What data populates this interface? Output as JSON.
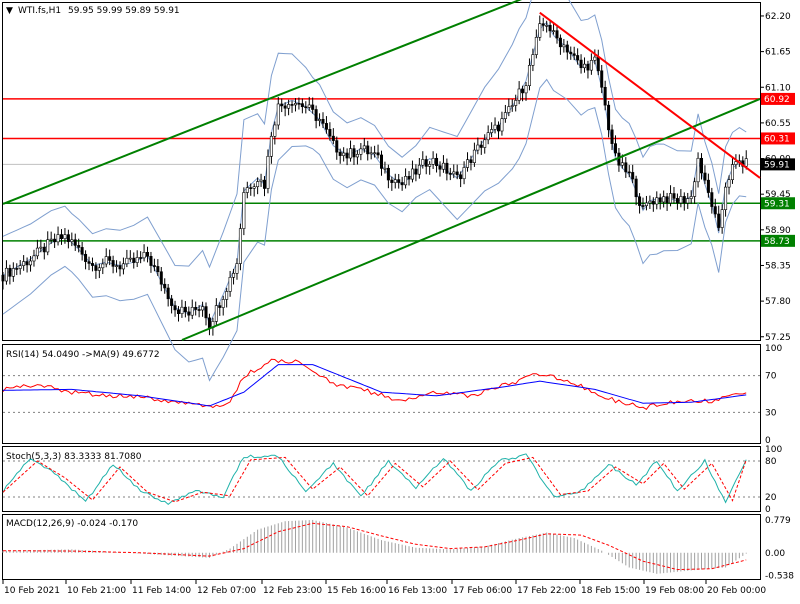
{
  "chart_data": [
    {
      "type": "candlestick",
      "symbol_header": "WTI.fs,H1",
      "ohlc_header": "59.95 59.99 59.89 59.91",
      "current_price": "59.91",
      "ylim": [
        57.2,
        62.4
      ],
      "y_ticks": [
        "62.20",
        "61.65",
        "61.10",
        "60.55",
        "60.00",
        "59.45",
        "58.90",
        "58.35",
        "57.80",
        "57.25"
      ],
      "y_tick_values": [
        62.2,
        61.65,
        61.1,
        60.55,
        60.0,
        59.45,
        58.9,
        58.35,
        57.8,
        57.25
      ],
      "horizontal_levels": [
        {
          "value": 60.92,
          "label": "60.92",
          "color": "#ff0000"
        },
        {
          "value": 60.31,
          "label": "60.31",
          "color": "#ff0000"
        },
        {
          "value": 59.31,
          "label": "59.31",
          "color": "#008000"
        },
        {
          "value": 58.73,
          "label": "58.73",
          "color": "#008000"
        }
      ],
      "price_path": [
        [
          0,
          58.2
        ],
        [
          8,
          58.45
        ],
        [
          14,
          58.7
        ],
        [
          18,
          58.8
        ],
        [
          22,
          58.6
        ],
        [
          26,
          58.35
        ],
        [
          30,
          58.4
        ],
        [
          34,
          58.35
        ],
        [
          38,
          58.4
        ],
        [
          42,
          58.5
        ],
        [
          46,
          58.1
        ],
        [
          50,
          57.7
        ],
        [
          54,
          57.6
        ],
        [
          58,
          57.75
        ],
        [
          60,
          57.45
        ],
        [
          64,
          57.9
        ],
        [
          68,
          58.4
        ],
        [
          70,
          59.5
        ],
        [
          74,
          59.7
        ],
        [
          76,
          59.6
        ],
        [
          78,
          60.4
        ],
        [
          80,
          60.8
        ],
        [
          84,
          60.9
        ],
        [
          88,
          60.8
        ],
        [
          92,
          60.6
        ],
        [
          96,
          60.2
        ],
        [
          100,
          60.05
        ],
        [
          104,
          60.15
        ],
        [
          108,
          60.05
        ],
        [
          112,
          59.75
        ],
        [
          116,
          59.6
        ],
        [
          120,
          59.8
        ],
        [
          124,
          60.0
        ],
        [
          128,
          59.85
        ],
        [
          132,
          59.7
        ],
        [
          136,
          60.0
        ],
        [
          140,
          60.3
        ],
        [
          144,
          60.5
        ],
        [
          148,
          60.8
        ],
        [
          152,
          61.2
        ],
        [
          154,
          61.6
        ],
        [
          156,
          62.0
        ],
        [
          158,
          62.1
        ],
        [
          160,
          61.9
        ],
        [
          164,
          61.7
        ],
        [
          168,
          61.4
        ],
        [
          172,
          61.5
        ],
        [
          174,
          61.1
        ],
        [
          176,
          60.5
        ],
        [
          178,
          60.0
        ],
        [
          180,
          59.85
        ],
        [
          182,
          59.75
        ],
        [
          184,
          59.5
        ],
        [
          186,
          59.2
        ],
        [
          188,
          59.35
        ],
        [
          192,
          59.4
        ],
        [
          196,
          59.35
        ],
        [
          200,
          59.4
        ],
        [
          202,
          60.0
        ],
        [
          204,
          59.6
        ],
        [
          206,
          59.3
        ],
        [
          208,
          58.85
        ],
        [
          210,
          59.6
        ],
        [
          212,
          59.85
        ],
        [
          214,
          59.95
        ],
        [
          216,
          59.91
        ]
      ],
      "bollinger_half_width": [
        [
          0,
          0.5
        ],
        [
          20,
          0.35
        ],
        [
          50,
          0.55
        ],
        [
          70,
          1.0
        ],
        [
          90,
          0.45
        ],
        [
          120,
          0.3
        ],
        [
          150,
          0.9
        ],
        [
          170,
          0.6
        ],
        [
          190,
          0.75
        ],
        [
          216,
          0.4
        ]
      ],
      "lines": [
        {
          "name": "channel-upper",
          "color": "#008000",
          "from": [
            0,
            59.3
          ],
          "to": [
            155,
            62.55
          ]
        },
        {
          "name": "channel-lower",
          "color": "#008000",
          "from": [
            52,
            57.2
          ],
          "to": [
            220,
            60.92
          ]
        },
        {
          "name": "trend-down",
          "color": "#ff0000",
          "from": [
            156,
            62.25
          ],
          "to": [
            220,
            59.7
          ]
        }
      ],
      "x_range": [
        0,
        220
      ]
    },
    {
      "type": "line",
      "header": "RSI(14) 54.0490  ->MA(9) 49.6772",
      "ylim": [
        0,
        100
      ],
      "y_ticks": [
        "100",
        "70",
        "30",
        "0"
      ],
      "y_tick_values": [
        100,
        70,
        30,
        0
      ],
      "levels": [
        70,
        30
      ],
      "series": [
        {
          "color": "#ff0000",
          "values": [
            [
              0,
              55
            ],
            [
              10,
              60
            ],
            [
              20,
              52
            ],
            [
              30,
              48
            ],
            [
              40,
              47
            ],
            [
              50,
              42
            ],
            [
              60,
              36
            ],
            [
              66,
              40
            ],
            [
              70,
              70
            ],
            [
              78,
              86
            ],
            [
              86,
              86
            ],
            [
              96,
              60
            ],
            [
              106,
              53
            ],
            [
              116,
              42
            ],
            [
              126,
              52
            ],
            [
              136,
              48
            ],
            [
              146,
              60
            ],
            [
              156,
              72
            ],
            [
              166,
              62
            ],
            [
              176,
              45
            ],
            [
              186,
              35
            ],
            [
              196,
              42
            ],
            [
              206,
              42
            ],
            [
              216,
              53
            ]
          ]
        },
        {
          "color": "#0000ff",
          "values": [
            [
              0,
              54
            ],
            [
              20,
              55
            ],
            [
              40,
              48
            ],
            [
              60,
              37
            ],
            [
              70,
              52
            ],
            [
              80,
              82
            ],
            [
              90,
              82
            ],
            [
              110,
              52
            ],
            [
              126,
              48
            ],
            [
              146,
              58
            ],
            [
              156,
              64
            ],
            [
              172,
              55
            ],
            [
              186,
              40
            ],
            [
              200,
              41
            ],
            [
              216,
              49
            ]
          ]
        }
      ]
    },
    {
      "type": "line",
      "header": "Stoch(5,3,3) 83.3333 81.7080",
      "ylim": [
        0,
        100
      ],
      "y_ticks": [
        "100",
        "80",
        "20",
        "0"
      ],
      "y_tick_values": [
        100,
        80,
        20,
        0
      ],
      "levels": [
        80,
        20
      ],
      "series": [
        {
          "color": "#20b2aa",
          "values": [
            [
              0,
              30
            ],
            [
              8,
              85
            ],
            [
              16,
              55
            ],
            [
              24,
              12
            ],
            [
              32,
              75
            ],
            [
              40,
              30
            ],
            [
              48,
              10
            ],
            [
              56,
              30
            ],
            [
              64,
              20
            ],
            [
              70,
              88
            ],
            [
              80,
              88
            ],
            [
              88,
              30
            ],
            [
              96,
              75
            ],
            [
              104,
              20
            ],
            [
              112,
              80
            ],
            [
              120,
              35
            ],
            [
              128,
              85
            ],
            [
              136,
              30
            ],
            [
              144,
              80
            ],
            [
              152,
              90
            ],
            [
              160,
              20
            ],
            [
              168,
              30
            ],
            [
              176,
              75
            ],
            [
              184,
              40
            ],
            [
              190,
              80
            ],
            [
              196,
              30
            ],
            [
              204,
              80
            ],
            [
              210,
              10
            ],
            [
              216,
              84
            ]
          ]
        },
        {
          "color": "#ff0000",
          "values": [
            [
              0,
              28
            ],
            [
              10,
              80
            ],
            [
              18,
              52
            ],
            [
              26,
              15
            ],
            [
              34,
              70
            ],
            [
              42,
              28
            ],
            [
              50,
              12
            ],
            [
              58,
              28
            ],
            [
              66,
              22
            ],
            [
              72,
              82
            ],
            [
              82,
              86
            ],
            [
              90,
              33
            ],
            [
              98,
              70
            ],
            [
              106,
              22
            ],
            [
              114,
              76
            ],
            [
              122,
              37
            ],
            [
              130,
              80
            ],
            [
              138,
              32
            ],
            [
              146,
              76
            ],
            [
              154,
              86
            ],
            [
              162,
              24
            ],
            [
              170,
              30
            ],
            [
              178,
              70
            ],
            [
              186,
              42
            ],
            [
              192,
              76
            ],
            [
              198,
              33
            ],
            [
              206,
              76
            ],
            [
              212,
              14
            ],
            [
              216,
              82
            ]
          ]
        }
      ]
    },
    {
      "type": "bar",
      "header": "MACD(12,26,9) -0.024 -0.170",
      "ylim": [
        -0.6,
        0.85
      ],
      "y_ticks": [
        "0.779",
        "0.00",
        "-0.538"
      ],
      "y_tick_values": [
        0.779,
        0.0,
        -0.538
      ],
      "histogram": [
        [
          0,
          0.05
        ],
        [
          20,
          0.08
        ],
        [
          40,
          -0.02
        ],
        [
          60,
          -0.12
        ],
        [
          66,
          0.1
        ],
        [
          74,
          0.55
        ],
        [
          82,
          0.75
        ],
        [
          90,
          0.78
        ],
        [
          100,
          0.6
        ],
        [
          110,
          0.3
        ],
        [
          120,
          0.12
        ],
        [
          130,
          0.08
        ],
        [
          140,
          0.15
        ],
        [
          150,
          0.35
        ],
        [
          158,
          0.48
        ],
        [
          166,
          0.35
        ],
        [
          174,
          0.05
        ],
        [
          182,
          -0.35
        ],
        [
          190,
          -0.5
        ],
        [
          200,
          -0.42
        ],
        [
          210,
          -0.35
        ],
        [
          216,
          -0.02
        ]
      ],
      "signal": [
        [
          0,
          0.05
        ],
        [
          20,
          0.04
        ],
        [
          40,
          0.0
        ],
        [
          60,
          -0.08
        ],
        [
          70,
          0.1
        ],
        [
          80,
          0.5
        ],
        [
          90,
          0.7
        ],
        [
          100,
          0.62
        ],
        [
          110,
          0.4
        ],
        [
          120,
          0.2
        ],
        [
          130,
          0.1
        ],
        [
          140,
          0.14
        ],
        [
          150,
          0.3
        ],
        [
          158,
          0.45
        ],
        [
          168,
          0.42
        ],
        [
          176,
          0.18
        ],
        [
          186,
          -0.2
        ],
        [
          196,
          -0.4
        ],
        [
          206,
          -0.38
        ],
        [
          216,
          -0.17
        ]
      ]
    }
  ],
  "x_axis_labels": [
    "10 Feb 2021",
    "10 Feb 21:00",
    "11 Feb 14:00",
    "12 Feb 07:00",
    "12 Feb 23:00",
    "15 Feb 16:00",
    "16 Feb 13:00",
    "17 Feb 06:00",
    "17 Feb 22:00",
    "18 Feb 15:00",
    "19 Feb 08:00",
    "20 Feb 00:00"
  ],
  "colors": {
    "up": "#ffffff",
    "down": "#000000",
    "band": "#7f9fcf",
    "grid": "#c0c0c0"
  }
}
